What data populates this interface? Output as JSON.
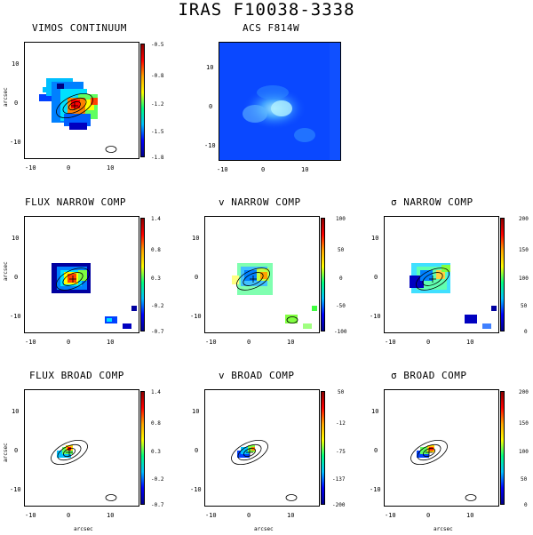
{
  "figure_title": "IRAS F10038-3338",
  "panels": {
    "p1": {
      "title": "VIMOS CONTINUUM",
      "cbar": [
        "-0.5",
        "-0.8",
        "-1.2",
        "-1.5",
        "-1.8"
      ]
    },
    "p2": {
      "title": "ACS F814W"
    },
    "p3": {
      "title": "FLUX NARROW COMP",
      "cbar": [
        "1.4",
        "0.8",
        "0.3",
        "-0.2",
        "-0.7"
      ]
    },
    "p4": {
      "title": "v NARROW COMP",
      "cbar": [
        "100",
        "50",
        "0",
        "-50",
        "-100"
      ]
    },
    "p5": {
      "title": "σ NARROW COMP",
      "cbar": [
        "200",
        "150",
        "100",
        "50",
        "0"
      ]
    },
    "p6": {
      "title": "FLUX BROAD COMP",
      "cbar": [
        "1.4",
        "0.8",
        "0.3",
        "-0.2",
        "-0.7"
      ]
    },
    "p7": {
      "title": "v BROAD COMP",
      "cbar": [
        "50",
        "-12",
        "-75",
        "-137",
        "-200"
      ]
    },
    "p8": {
      "title": "σ BROAD COMP",
      "cbar": [
        "200",
        "150",
        "100",
        "50",
        "0"
      ]
    }
  },
  "axes": {
    "y_ticks": [
      "10",
      "0",
      "-10"
    ],
    "x_ticks": [
      "-10",
      "0",
      "10"
    ],
    "y_label": "arcsec",
    "x_label": "arcsec"
  }
}
